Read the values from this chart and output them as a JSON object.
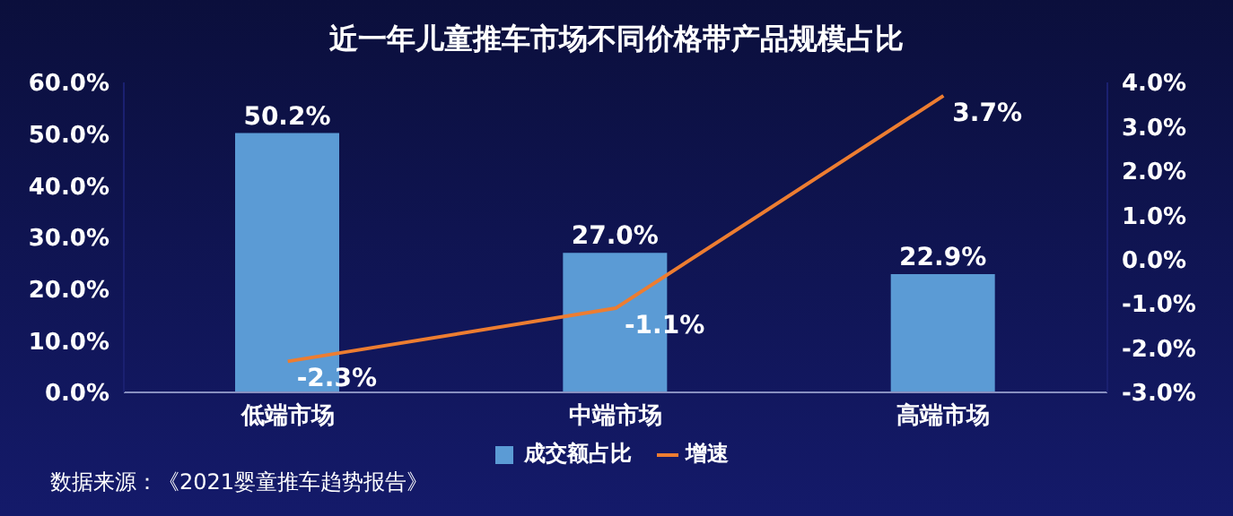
{
  "chart_data": {
    "type": "bar",
    "title": "近一年儿童推车市场不同价格带产品规模占比",
    "categories": [
      "低端市场",
      "中端市场",
      "高端市场"
    ],
    "series": [
      {
        "name": "成交额占比",
        "color": "#5b9bd5",
        "values": [
          50.2,
          27.0,
          22.9
        ],
        "value_labels": [
          "50.2%",
          "27.0%",
          "22.9%"
        ]
      },
      {
        "name": "增速",
        "type": "line",
        "axis": "y2",
        "color": "#ed7d31",
        "values": [
          -2.3,
          -1.1,
          3.7
        ],
        "value_labels": [
          "-2.3%",
          "-1.1%",
          "3.7%"
        ]
      }
    ],
    "ylim": [
      0,
      60
    ],
    "yticks": [
      {
        "value": 0,
        "label": "0.0%"
      },
      {
        "value": 10,
        "label": "10.0%"
      },
      {
        "value": 20,
        "label": "20.0%"
      },
      {
        "value": 30,
        "label": "30.0%"
      },
      {
        "value": 40,
        "label": "40.0%"
      },
      {
        "value": 50,
        "label": "50.0%"
      },
      {
        "value": 60,
        "label": "60.0%"
      }
    ],
    "y2lim": [
      -3,
      4
    ],
    "y2ticks": [
      {
        "value": -3,
        "label": "-3.0%"
      },
      {
        "value": -2,
        "label": "-2.0%"
      },
      {
        "value": -1,
        "label": "-1.0%"
      },
      {
        "value": 0,
        "label": "0.0%"
      },
      {
        "value": 1,
        "label": "1.0%"
      },
      {
        "value": 2,
        "label": "2.0%"
      },
      {
        "value": 3,
        "label": "3.0%"
      },
      {
        "value": 4,
        "label": "4.0%"
      }
    ],
    "grid": false,
    "legend": "bottom",
    "marker": "none",
    "annotations": [
      "数据来源：《2021婴童推车趋势报告》"
    ]
  }
}
